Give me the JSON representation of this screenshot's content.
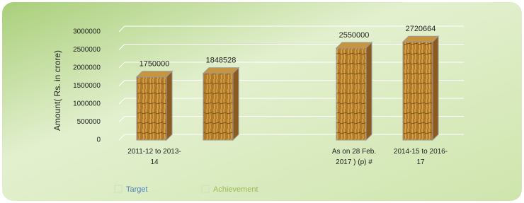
{
  "chart_data": {
    "type": "bar3d",
    "y_label": "Amount( Rs. in crore)",
    "categories": [
      "2011-12 to 2013-14",
      null,
      "As on 28 Feb. 2017 ) (p) #",
      "2014-15 to 2016-17"
    ],
    "series": [
      {
        "name": "Target",
        "color": "#4f81bd",
        "values": [
          1750000,
          null,
          null,
          2720664
        ]
      },
      {
        "name": "Achievement",
        "color": "#9bbb59",
        "values": [
          null,
          1848528,
          2550000,
          null
        ]
      }
    ],
    "ylim": [
      0,
      3000000
    ],
    "yticks": [
      0,
      500000,
      1000000,
      1500000,
      2000000,
      2500000,
      3000000
    ],
    "grid": true
  }
}
